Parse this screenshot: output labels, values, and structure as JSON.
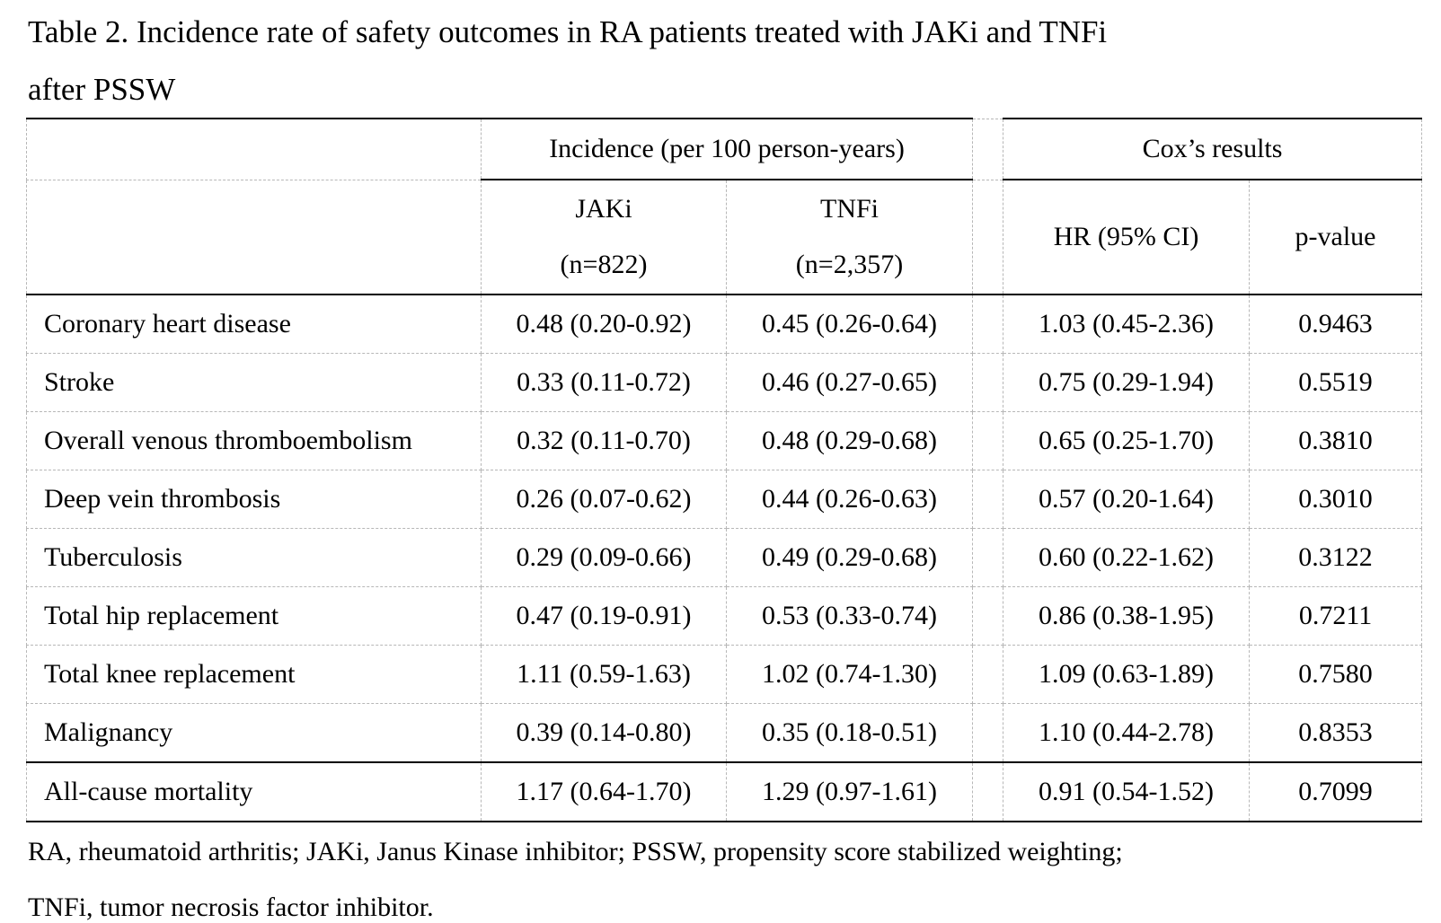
{
  "caption": {
    "line1": "Table 2. Incidence rate of safety outcomes in RA patients treated with JAKi and TNFi",
    "line2": "after PSSW"
  },
  "header": {
    "incidence_group": "Incidence (per 100 person-years)",
    "cox_group": "Cox’s results",
    "jaki_name": "JAKi",
    "jaki_n": "(n=822)",
    "tnfi_name": "TNFi",
    "tnfi_n": "(n=2,357)",
    "hr": "HR (95% CI)",
    "pvalue": "p-value"
  },
  "rows": [
    {
      "outcome": "Coronary heart disease",
      "jaki": "0.48 (0.20-0.92)",
      "tnfi": "0.45 (0.26-0.64)",
      "hr": "1.03 (0.45-2.36)",
      "p": "0.9463"
    },
    {
      "outcome": "Stroke",
      "jaki": "0.33 (0.11-0.72)",
      "tnfi": "0.46 (0.27-0.65)",
      "hr": "0.75 (0.29-1.94)",
      "p": "0.5519"
    },
    {
      "outcome": "Overall venous thromboembolism",
      "jaki": "0.32 (0.11-0.70)",
      "tnfi": "0.48 (0.29-0.68)",
      "hr": "0.65 (0.25-1.70)",
      "p": "0.3810"
    },
    {
      "outcome": "Deep vein thrombosis",
      "jaki": "0.26 (0.07-0.62)",
      "tnfi": "0.44 (0.26-0.63)",
      "hr": "0.57 (0.20-1.64)",
      "p": "0.3010"
    },
    {
      "outcome": "Tuberculosis",
      "jaki": "0.29 (0.09-0.66)",
      "tnfi": "0.49 (0.29-0.68)",
      "hr": "0.60 (0.22-1.62)",
      "p": "0.3122"
    },
    {
      "outcome": "Total hip replacement",
      "jaki": "0.47 (0.19-0.91)",
      "tnfi": "0.53 (0.33-0.74)",
      "hr": "0.86 (0.38-1.95)",
      "p": "0.7211"
    },
    {
      "outcome": "Total knee replacement",
      "jaki": "1.11 (0.59-1.63)",
      "tnfi": "1.02 (0.74-1.30)",
      "hr": "1.09 (0.63-1.89)",
      "p": "0.7580"
    },
    {
      "outcome": "Malignancy",
      "jaki": "0.39 (0.14-0.80)",
      "tnfi": "0.35 (0.18-0.51)",
      "hr": "1.10 (0.44-2.78)",
      "p": "0.8353"
    },
    {
      "outcome": "All-cause mortality",
      "jaki": "1.17 (0.64-1.70)",
      "tnfi": "1.29 (0.97-1.61)",
      "hr": "0.91 (0.54-1.52)",
      "p": "0.7099"
    }
  ],
  "footnote": {
    "line1": "RA, rheumatoid arthritis; JAKi, Janus Kinase inhibitor; PSSW, propensity score stabilized weighting;",
    "line2": "TNFi, tumor necrosis factor inhibitor."
  }
}
